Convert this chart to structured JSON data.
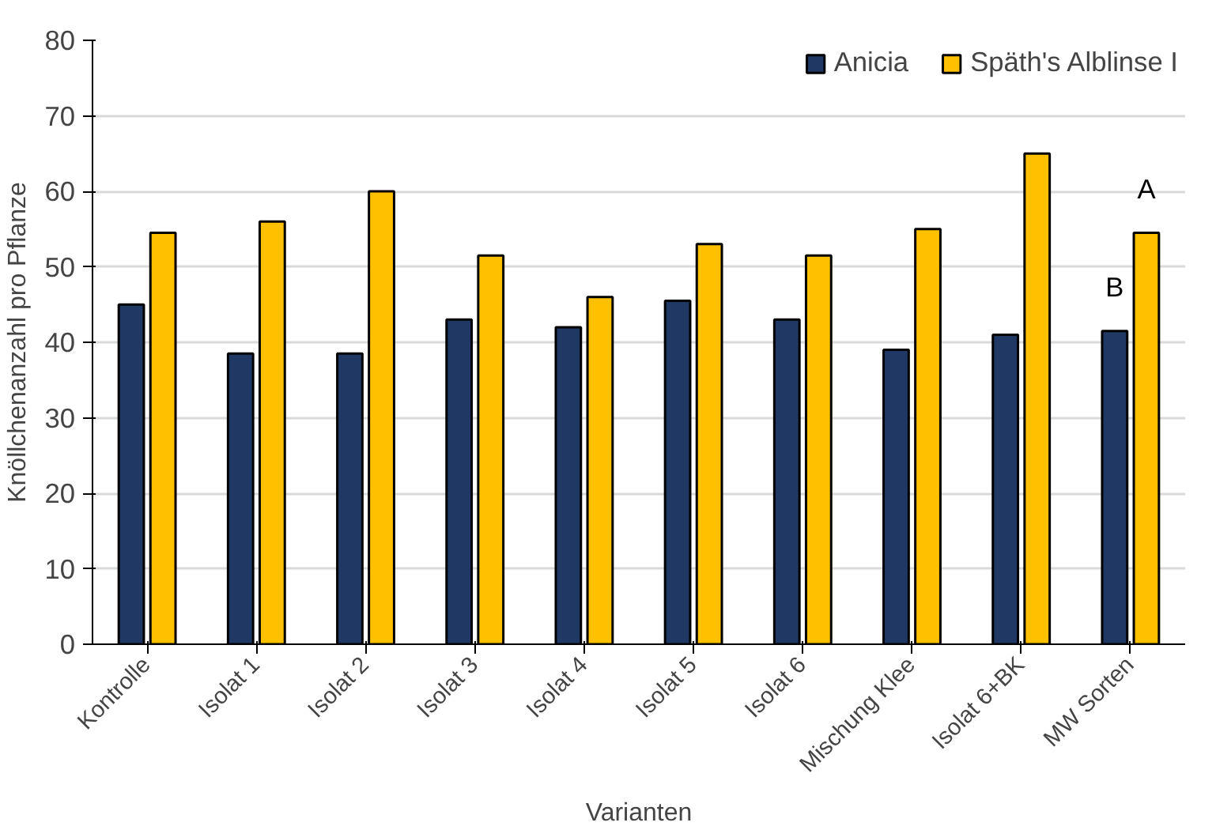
{
  "chart_data": {
    "type": "bar",
    "xlabel": "Varianten",
    "ylabel": "Knöllchenanzahl pro Pflanze",
    "categories": [
      "Kontrolle",
      "Isolat 1",
      "Isolat 2",
      "Isolat 3",
      "Isolat 4",
      "Isolat 5",
      "Isolat 6",
      "Mischung Klee",
      "Isolat 6+BK",
      "MW Sorten"
    ],
    "series": [
      {
        "name": "Anicia",
        "color": "#203864",
        "values": [
          45,
          38.5,
          38.5,
          43,
          42,
          45.5,
          43,
          39,
          41,
          41.5
        ]
      },
      {
        "name": "Späth's Alblinse I",
        "color": "#ffc000",
        "values": [
          54.5,
          56,
          60,
          51.5,
          46,
          53,
          51.5,
          55,
          65,
          54.5
        ]
      }
    ],
    "ylim": [
      0,
      80
    ],
    "yticks": [
      0,
      10,
      20,
      30,
      40,
      50,
      60,
      70,
      80
    ],
    "grid": "y",
    "legend": "top right",
    "annotations": [
      {
        "text": "B",
        "x": "MW Sorten",
        "y": 41.5
      },
      {
        "text": "A",
        "x": "MW Sorten",
        "y": 54.5
      }
    ]
  }
}
